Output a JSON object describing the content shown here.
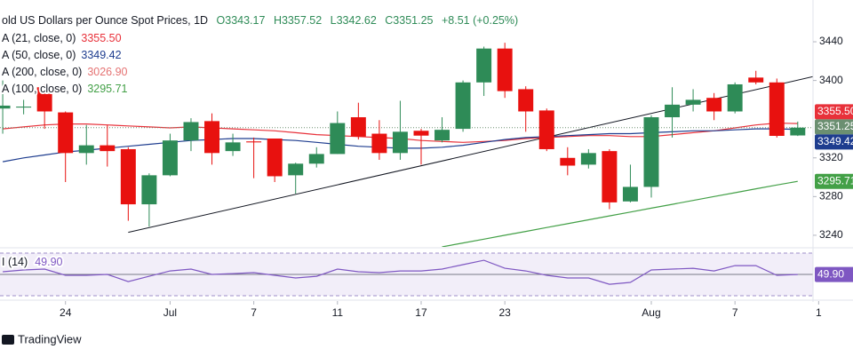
{
  "chart_data": {
    "type": "candlestick",
    "title": "old US Dollars per Ounce Spot Prices, 1D",
    "ohlc_header": [
      {
        "value": 3343.17,
        "label": "O3343.17"
      },
      {
        "value": 3357.52,
        "label": "H3357.52"
      },
      {
        "value": 3342.62,
        "label": "L3342.62"
      },
      {
        "value": 3351.25,
        "label": "C3351.25"
      }
    ],
    "change": "+8.51 (+0.25%)",
    "up_color": "#2e8b57",
    "down_color": "#e8110f",
    "open": [
      3371,
      3372,
      3393,
      3367,
      3325,
      3333,
      3329,
      3272,
      3302,
      3338,
      3358,
      3327,
      3337,
      3340,
      3302,
      3314,
      3324,
      3362,
      3345,
      3325,
      3348,
      3338,
      3350,
      3398,
      3433,
      3391,
      3369,
      3320,
      3313,
      3327,
      3275,
      3290,
      3362,
      3375,
      3382,
      3368,
      3403,
      3398,
      3343.17
    ],
    "high": [
      3400,
      3380,
      3396,
      3368,
      3354,
      3354,
      3331,
      3304,
      3345,
      3361,
      3366,
      3345,
      3341,
      3340,
      3315,
      3331,
      3368,
      3377,
      3359,
      3379,
      3350,
      3362,
      3400,
      3435,
      3439,
      3394,
      3371,
      3331,
      3329,
      3329,
      3313,
      3364,
      3393,
      3391,
      3387,
      3398,
      3410,
      3402,
      3357.52
    ],
    "low": [
      3345,
      3365,
      3350,
      3295,
      3313,
      3311,
      3255,
      3249,
      3301,
      3327,
      3313,
      3322,
      3299,
      3295,
      3283,
      3310,
      3324,
      3339,
      3318,
      3318,
      3313,
      3336,
      3347,
      3384,
      3382,
      3347,
      3327,
      3302,
      3309,
      3267,
      3274,
      3279,
      3341,
      3368,
      3359,
      3366,
      3396,
      3341,
      3342.62
    ],
    "close": [
      3374,
      3373,
      3368,
      3325,
      3333,
      3327,
      3272,
      3302,
      3338,
      3357,
      3325,
      3336,
      3336,
      3301,
      3314,
      3324,
      3356,
      3342,
      3325,
      3347,
      3343,
      3349,
      3398,
      3433,
      3389,
      3368,
      3329,
      3312,
      3325,
      3274,
      3290,
      3362,
      3375,
      3380,
      3368,
      3396,
      3398,
      3342.74,
      3351.25
    ],
    "xlim": [
      -0.13,
      38.73
    ],
    "xticks": [
      {
        "value": 3,
        "label": "24"
      },
      {
        "value": 8,
        "label": "Jul"
      },
      {
        "value": 12,
        "label": "7"
      },
      {
        "value": 16,
        "label": "11"
      },
      {
        "value": 20,
        "label": "17"
      },
      {
        "value": 24,
        "label": "23"
      },
      {
        "value": 31,
        "label": "Aug"
      },
      {
        "value": 35,
        "label": "7"
      },
      {
        "value": 39,
        "label": "1"
      }
    ],
    "ylim": [
      3228,
      3474
    ],
    "yticks": [
      3240,
      3280,
      3320,
      3400,
      3440
    ],
    "grid": false,
    "series": [
      {
        "name": "A (21, close, 0)",
        "color": "#e8313a",
        "last": {
          "value": 3355.5,
          "label": "3355.50"
        },
        "values": [
          3350,
          3352,
          3354,
          3355,
          3355,
          3354,
          3353,
          3352,
          3351,
          3352,
          3351,
          3350,
          3349,
          3348,
          3346,
          3344,
          3343,
          3342,
          3341,
          3340,
          3338,
          3337,
          3336,
          3337,
          3338,
          3340,
          3341,
          3342,
          3343,
          3343,
          3342,
          3342,
          3344,
          3346,
          3348,
          3351,
          3354,
          3356,
          3355.5
        ]
      },
      {
        "name": "A (50, close, 0)",
        "color": "#1e3d8f",
        "last": {
          "value": 3349.42,
          "label": "3349.42"
        },
        "values": [
          3316,
          3320,
          3323,
          3326,
          3328,
          3330,
          3332,
          3334,
          3336,
          3338,
          3339,
          3340,
          3340,
          3339,
          3338,
          3336,
          3334,
          3332,
          3331,
          3330,
          3330,
          3331,
          3333,
          3336,
          3339,
          3341,
          3342,
          3343,
          3344,
          3345,
          3345,
          3346,
          3347,
          3348,
          3348,
          3349,
          3350,
          3350,
          3349.42
        ]
      },
      {
        "name": "A (200, close, 0)",
        "color": "#e57373",
        "last": {
          "value": 3026.9,
          "label": "3026.90"
        }
      },
      {
        "name": "A (100, close, 0)",
        "color": "#43a047",
        "last": {
          "value": 3295.71,
          "label": "3295.71"
        },
        "values": [
          null,
          null,
          null,
          null,
          null,
          null,
          null,
          null,
          null,
          null,
          null,
          null,
          null,
          null,
          null,
          null,
          null,
          null,
          null,
          null,
          null,
          3228,
          3232,
          3236,
          3240,
          3244,
          3248,
          3252,
          3256,
          3260,
          3264,
          3268,
          3272,
          3276,
          3280,
          3284,
          3288,
          3292,
          3295.71
        ]
      }
    ],
    "trendline": {
      "color": "#131722",
      "points": [
        [
          6,
          3243
        ],
        [
          38.94,
          3405
        ]
      ]
    },
    "rsi": {
      "name": "I (14)",
      "color": "#7e57c2",
      "ylim": [
        27.5,
        74.2
      ],
      "levels": [
        70,
        50,
        30
      ],
      "last": {
        "value": 49.9,
        "label": "49.90"
      },
      "values": [
        52.5,
        54.2,
        55,
        49.2,
        49.2,
        50,
        43.3,
        48.3,
        53.3,
        55,
        50,
        50.8,
        51.7,
        49.2,
        46.7,
        48.3,
        55,
        52.5,
        51.7,
        53.3,
        53.3,
        55,
        59.2,
        63.3,
        55.8,
        53.3,
        49.2,
        46.7,
        46.7,
        40.8,
        42.5,
        54.2,
        55,
        55.8,
        53.3,
        58.3,
        58.3,
        49.2,
        49.9
      ]
    },
    "brand": "TradingView"
  }
}
